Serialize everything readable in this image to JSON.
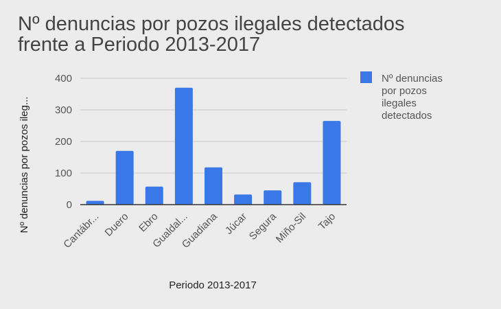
{
  "chart_data": {
    "type": "bar",
    "title": "Nº denuncias por pozos ilegales detectados frente a Periodo 2013-2017",
    "title_lines": [
      "Nº denuncias por pozos ilegales detectados",
      "frente a Periodo 2013-2017"
    ],
    "xlabel": "Periodo 2013-2017",
    "ylabel": "Nº denuncias por pozos ileg...",
    "categories": [
      "Cantábr...",
      "Duero",
      "Ebro",
      "Gualdal...",
      "Guadiana",
      "Júcar",
      "Segura",
      "Miño-Sil",
      "Tajo"
    ],
    "series": [
      {
        "name": "Nº denuncias por pozos ilegales detectados",
        "values": [
          12,
          170,
          57,
          370,
          118,
          32,
          45,
          71,
          265
        ]
      }
    ],
    "legend_lines": [
      "Nº denuncias",
      "por pozos",
      "ilegales",
      "detectados"
    ],
    "legend_position": "right",
    "ylim": [
      0,
      400
    ],
    "yticks": [
      0,
      100,
      200,
      300,
      400
    ],
    "grid": true,
    "color": "#3b78e7"
  }
}
